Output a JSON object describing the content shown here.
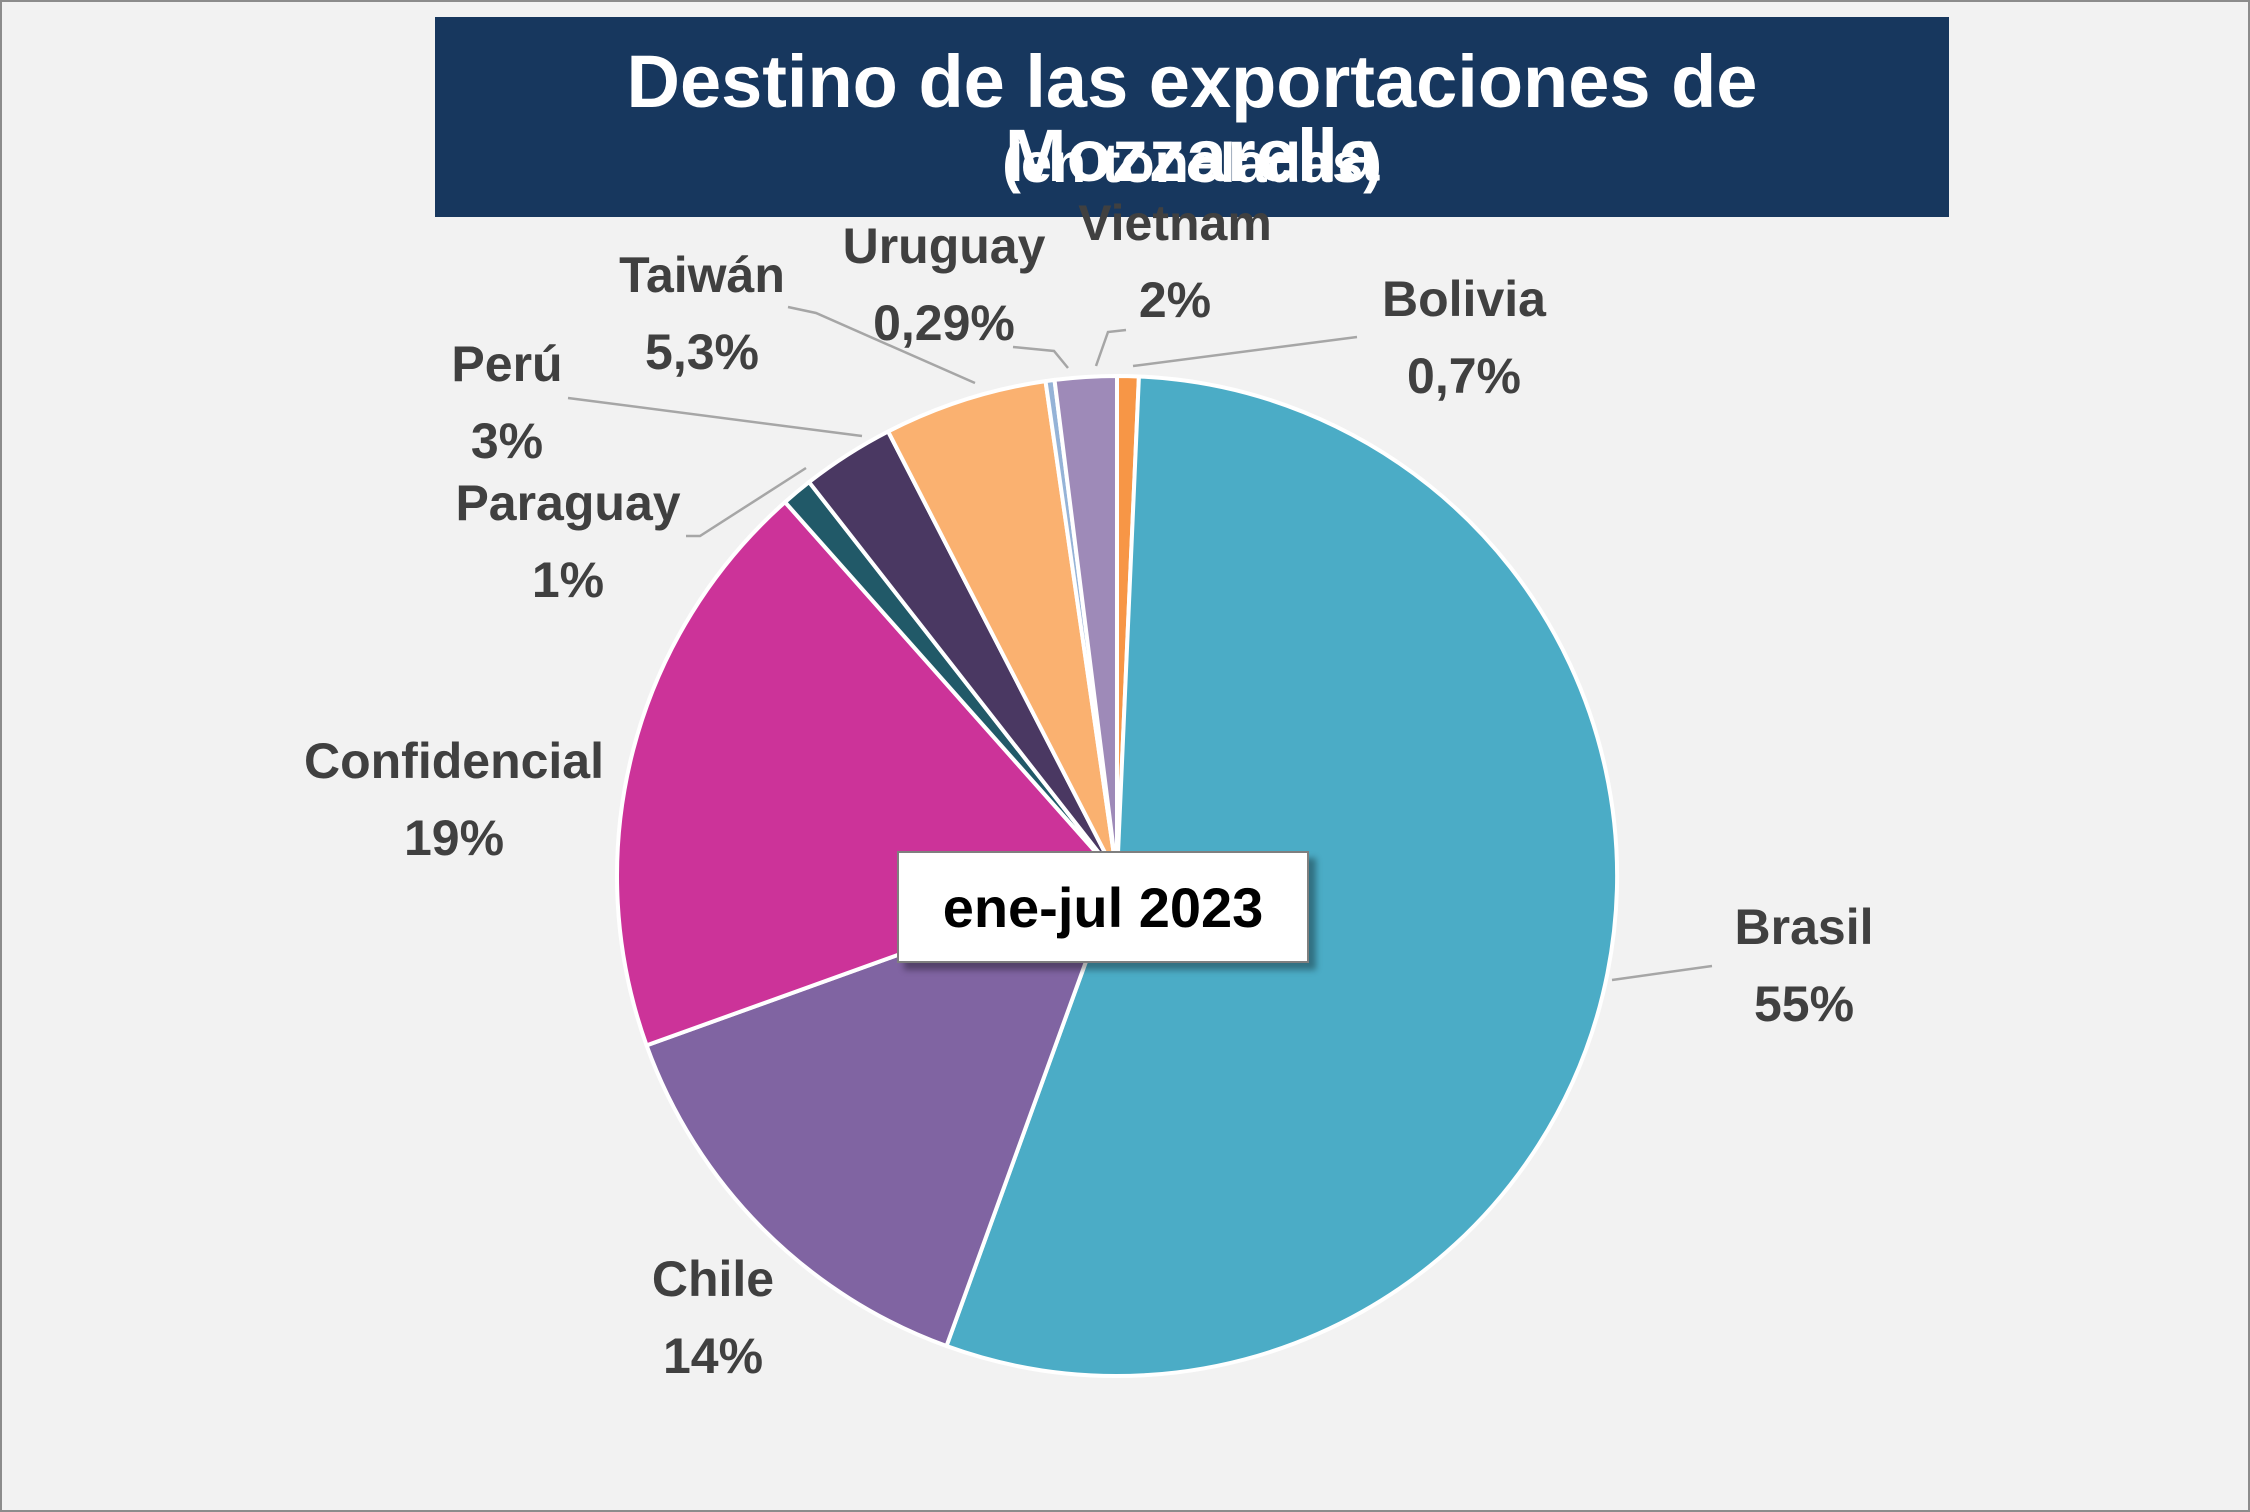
{
  "title": "Destino de las exportaciones de Mozzarella",
  "subtitle": "(en toneladas)",
  "period_label": "ene-jul 2023",
  "chart_data": {
    "type": "pie",
    "title": "Destino de las exportaciones de Mozzarella",
    "subtitle": "(en toneladas)",
    "slices": [
      {
        "name": "Bolivia",
        "label": "0,7%",
        "value": 0.7,
        "color": "#f79646"
      },
      {
        "name": "Brasil",
        "label": "55%",
        "value": 55,
        "color": "#4bacc6"
      },
      {
        "name": "Chile",
        "label": "14%",
        "value": 14,
        "color": "#8064a2"
      },
      {
        "name": "Confidencial",
        "label": "19%",
        "value": 19,
        "color": "#cc3399"
      },
      {
        "name": "Paraguay",
        "label": "1%",
        "value": 1,
        "color": "#215968"
      },
      {
        "name": "Perú",
        "label": "3%",
        "value": 3,
        "color": "#4a3862"
      },
      {
        "name": "Taiwán",
        "label": "5,3%",
        "value": 5.3,
        "color": "#fab170"
      },
      {
        "name": "Uruguay",
        "label": "0,29%",
        "value": 0.29,
        "color": "#95b3d7"
      },
      {
        "name": "Vietnam",
        "label": "2%",
        "value": 2,
        "color": "#9e8ab8"
      }
    ],
    "start_angle_deg": 0,
    "direction": "clockwise",
    "legend": "none"
  }
}
